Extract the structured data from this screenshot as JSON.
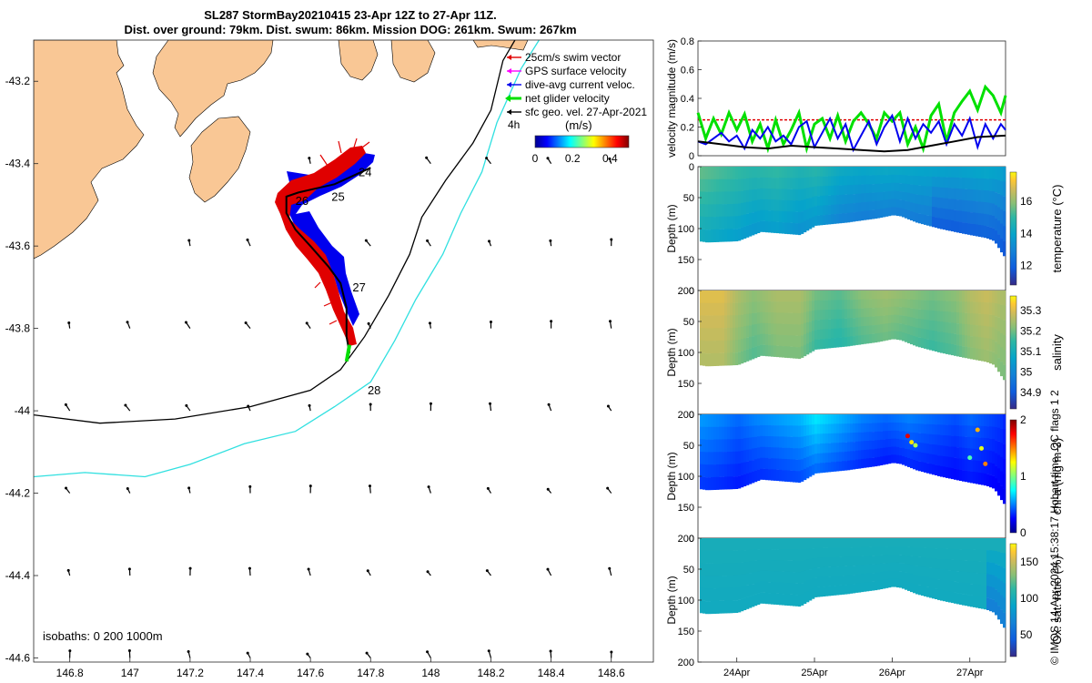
{
  "header": {
    "title_line1": "SL287 StormBay20210415 23-Apr 12Z to 27-Apr 11Z.",
    "title_line2": "Dist. over ground: 79km. Dist. swum: 86km. Mission DOG: 261km. Swum: 267km"
  },
  "footer": {
    "credit": "© IMOS 14-Apr-2024 15:38:17 Hobart time. QC flags 1  2"
  },
  "colors": {
    "land": "#f9c795",
    "swim_vector": "#e00000",
    "gps_velocity": "#ff00ff",
    "current_velocity": "#0000ee",
    "net_glider": "#00e000",
    "geo_velocity": "#000000",
    "isobath_200": "#000000",
    "isobath_1000": "#30e0e0"
  },
  "chart_data": [
    {
      "type": "map",
      "name": "trajectory-map",
      "xlim": [
        146.68,
        148.74
      ],
      "ylim": [
        -44.61,
        -43.1
      ],
      "x_ticks": [
        "146.8",
        "147",
        "147.2",
        "147.4",
        "147.6",
        "147.8",
        "148",
        "148.2",
        "148.4",
        "148.6"
      ],
      "x_tick_values": [
        146.8,
        147.0,
        147.2,
        147.4,
        147.6,
        147.8,
        148.0,
        148.2,
        148.4,
        148.6
      ],
      "y_ticks": [
        "-43.2",
        "-43.4",
        "-43.6",
        "-43.8",
        "-44",
        "-44.2",
        "-44.4",
        "-44.6"
      ],
      "y_tick_values": [
        -43.2,
        -43.4,
        -43.6,
        -43.8,
        -44.0,
        -44.2,
        -44.4,
        -44.6
      ],
      "legend": [
        "25cm/s swim vector",
        "GPS surface velocity",
        "dive-avg current veloc.",
        "net glider velocity",
        "sfc geo. vel. 27-Apr-2021"
      ],
      "legend_extra": "4h",
      "colorbar": {
        "label": "(m/s)",
        "ticks": [
          "0",
          "0.2",
          "0.4"
        ],
        "tick_values": [
          0,
          0.2,
          0.4
        ],
        "range": [
          0,
          0.5
        ]
      },
      "day_labels": [
        {
          "text": "24",
          "lon": 147.76,
          "lat": -43.43
        },
        {
          "text": "25",
          "lon": 147.67,
          "lat": -43.49
        },
        {
          "text": "26",
          "lon": 147.55,
          "lat": -43.5
        },
        {
          "text": "27",
          "lon": 147.74,
          "lat": -43.71
        },
        {
          "text": "28",
          "lon": 147.79,
          "lat": -43.96
        }
      ],
      "isobath_note": "isobaths: 0   200  1000m",
      "glider_track": [
        [
          147.8,
          -43.41
        ],
        [
          147.74,
          -43.43
        ],
        [
          147.68,
          -43.45
        ],
        [
          147.62,
          -43.46
        ],
        [
          147.56,
          -43.47
        ],
        [
          147.52,
          -43.48
        ],
        [
          147.52,
          -43.52
        ],
        [
          147.55,
          -43.56
        ],
        [
          147.6,
          -43.6
        ],
        [
          147.66,
          -43.65
        ],
        [
          147.7,
          -43.69
        ],
        [
          147.72,
          -43.75
        ],
        [
          147.72,
          -43.82
        ],
        [
          147.73,
          -43.86
        ]
      ],
      "net_glider_segment": [
        [
          147.73,
          -43.84
        ],
        [
          147.72,
          -43.88
        ]
      ],
      "isobath_200m": [
        [
          146.68,
          -44.01
        ],
        [
          146.9,
          -44.03
        ],
        [
          147.15,
          -44.02
        ],
        [
          147.4,
          -43.99
        ],
        [
          147.6,
          -43.95
        ],
        [
          147.7,
          -43.9
        ],
        [
          147.78,
          -43.82
        ],
        [
          147.86,
          -43.72
        ],
        [
          147.93,
          -43.62
        ],
        [
          147.97,
          -43.53
        ],
        [
          148.05,
          -43.44
        ],
        [
          148.14,
          -43.35
        ],
        [
          148.2,
          -43.27
        ],
        [
          148.24,
          -43.15
        ],
        [
          148.28,
          -43.1
        ]
      ],
      "isobath_1000m": [
        [
          146.68,
          -44.16
        ],
        [
          146.85,
          -44.15
        ],
        [
          147.05,
          -44.16
        ],
        [
          147.2,
          -44.13
        ],
        [
          147.38,
          -44.08
        ],
        [
          147.55,
          -44.05
        ],
        [
          147.68,
          -43.99
        ],
        [
          147.8,
          -43.93
        ],
        [
          147.88,
          -43.83
        ],
        [
          147.95,
          -43.73
        ],
        [
          148.04,
          -43.62
        ],
        [
          148.1,
          -43.52
        ],
        [
          148.17,
          -43.42
        ],
        [
          148.22,
          -43.3
        ],
        [
          148.3,
          -43.17
        ],
        [
          148.36,
          -43.1
        ]
      ]
    },
    {
      "type": "line",
      "name": "velocity-panel",
      "ylabel": "velocity magnitude (m/s)",
      "ylim": [
        0,
        0.8
      ],
      "y_ticks": [
        "0",
        "0.2",
        "0.4",
        "0.6",
        "0.8"
      ],
      "y_tick_values": [
        0,
        0.2,
        0.4,
        0.6,
        0.8
      ],
      "x_range_days": [
        23.5,
        27.46
      ],
      "series": [
        {
          "name": "25cm/s swim vector",
          "color": "#e00000",
          "style": "dashed",
          "x": [
            23.5,
            27.46
          ],
          "values": [
            0.25,
            0.25
          ]
        },
        {
          "name": "net glider velocity",
          "color": "#00e000",
          "x": [
            23.5,
            23.6,
            23.7,
            23.8,
            23.9,
            24.0,
            24.1,
            24.2,
            24.3,
            24.4,
            24.5,
            24.6,
            24.7,
            24.8,
            24.9,
            25.0,
            25.1,
            25.2,
            25.3,
            25.4,
            25.5,
            25.6,
            25.7,
            25.8,
            25.9,
            26.0,
            26.1,
            26.2,
            26.3,
            26.4,
            26.5,
            26.6,
            26.7,
            26.8,
            26.9,
            27.0,
            27.1,
            27.2,
            27.3,
            27.4,
            27.46
          ],
          "values": [
            0.3,
            0.12,
            0.26,
            0.15,
            0.3,
            0.18,
            0.29,
            0.1,
            0.22,
            0.05,
            0.25,
            0.08,
            0.18,
            0.3,
            0.05,
            0.22,
            0.26,
            0.12,
            0.28,
            0.1,
            0.24,
            0.3,
            0.22,
            0.12,
            0.3,
            0.24,
            0.3,
            0.08,
            0.2,
            0.05,
            0.28,
            0.36,
            0.1,
            0.3,
            0.38,
            0.45,
            0.32,
            0.48,
            0.42,
            0.3,
            0.42
          ]
        },
        {
          "name": "dive-avg current veloc.",
          "color": "#0000ee",
          "x": [
            23.5,
            23.6,
            23.7,
            23.8,
            23.9,
            24.0,
            24.1,
            24.2,
            24.3,
            24.4,
            24.5,
            24.6,
            24.7,
            24.8,
            24.9,
            25.0,
            25.1,
            25.2,
            25.3,
            25.4,
            25.5,
            25.6,
            25.7,
            25.8,
            25.9,
            26.0,
            26.1,
            26.2,
            26.3,
            26.4,
            26.5,
            26.6,
            26.7,
            26.8,
            26.9,
            27.0,
            27.1,
            27.2,
            27.3,
            27.4,
            27.46
          ],
          "values": [
            0.1,
            0.08,
            0.12,
            0.16,
            0.1,
            0.14,
            0.05,
            0.18,
            0.12,
            0.2,
            0.1,
            0.14,
            0.08,
            0.2,
            0.24,
            0.06,
            0.16,
            0.26,
            0.12,
            0.22,
            0.04,
            0.14,
            0.24,
            0.08,
            0.2,
            0.28,
            0.1,
            0.26,
            0.12,
            0.22,
            0.16,
            0.24,
            0.08,
            0.22,
            0.14,
            0.26,
            0.06,
            0.22,
            0.12,
            0.22,
            0.18
          ]
        },
        {
          "name": "sfc geo. vel.",
          "color": "#000000",
          "x": [
            23.5,
            23.8,
            24.1,
            24.4,
            24.7,
            25.0,
            25.3,
            25.6,
            25.9,
            26.2,
            26.5,
            26.8,
            27.1,
            27.46
          ],
          "values": [
            0.1,
            0.08,
            0.06,
            0.05,
            0.07,
            0.06,
            0.05,
            0.04,
            0.03,
            0.04,
            0.07,
            0.1,
            0.13,
            0.14
          ]
        }
      ]
    },
    {
      "type": "heatmap",
      "name": "temperature-panel",
      "ylabel": "Depth (m)",
      "colorbar_label": "temperature (°C)",
      "colormap": "parula",
      "ylim": [
        200,
        0
      ],
      "y_ticks": [
        "0",
        "50",
        "100",
        "150",
        "200"
      ],
      "y_tick_values": [
        0,
        50,
        100,
        150,
        200
      ],
      "cbar_range": [
        10.8,
        17.8
      ],
      "cbar_ticks": [
        "12",
        "14",
        "16"
      ],
      "cbar_tick_values": [
        12,
        14,
        16
      ],
      "x_days": [
        23.5,
        23.8,
        24.0,
        24.2,
        24.5,
        24.8,
        25.0,
        25.3,
        25.6,
        25.9,
        26.2,
        26.5,
        26.8,
        27.0,
        27.2,
        27.4,
        27.46
      ],
      "surface_values": [
        15.5,
        15.2,
        15.0,
        14.8,
        15.0,
        14.6,
        14.8,
        14.2,
        14.0,
        14.1,
        14.0,
        13.9,
        13.8,
        13.9,
        14.0,
        13.8,
        13.4
      ]
    },
    {
      "type": "heatmap",
      "name": "salinity-panel",
      "ylabel": "Depth (m)",
      "colorbar_label": "salinity",
      "colormap": "parula",
      "ylim": [
        200,
        0
      ],
      "y_ticks": [
        "0",
        "50",
        "100",
        "150",
        "200"
      ],
      "y_tick_values": [
        0,
        50,
        100,
        150,
        200
      ],
      "cbar_range": [
        34.82,
        35.37
      ],
      "cbar_ticks": [
        "34.9",
        "35",
        "35.1",
        "35.2",
        "35.3"
      ],
      "cbar_tick_values": [
        34.9,
        35.0,
        35.1,
        35.2,
        35.3
      ],
      "x_days": [
        23.5,
        23.8,
        24.0,
        24.2,
        24.5,
        24.8,
        25.0,
        25.3,
        25.6,
        25.9,
        26.2,
        26.5,
        26.8,
        27.0,
        27.2,
        27.4,
        27.46
      ],
      "surface_values": [
        35.3,
        35.3,
        35.25,
        35.22,
        35.25,
        35.25,
        35.2,
        35.18,
        35.22,
        35.24,
        35.22,
        35.2,
        35.22,
        35.26,
        35.28,
        35.25,
        35.25
      ]
    },
    {
      "type": "heatmap",
      "name": "chla-panel",
      "ylabel": "Depth (m)",
      "colorbar_label": "chl-a (mg m-3)",
      "colormap": "jet",
      "ylim": [
        200,
        0
      ],
      "y_ticks": [
        "0",
        "50",
        "100",
        "150",
        "200"
      ],
      "y_tick_values": [
        0,
        50,
        100,
        150,
        200
      ],
      "cbar_range": [
        0,
        2
      ],
      "cbar_ticks": [
        "0",
        "1",
        "2"
      ],
      "cbar_tick_values": [
        0,
        1,
        2
      ],
      "x_days": [
        23.5,
        23.8,
        24.0,
        24.2,
        24.5,
        24.8,
        25.0,
        25.3,
        25.6,
        25.9,
        26.2,
        26.5,
        26.8,
        27.0,
        27.2,
        27.4,
        27.46
      ],
      "surface_values": [
        0.55,
        0.5,
        0.45,
        0.5,
        0.55,
        0.6,
        0.7,
        0.6,
        0.5,
        0.45,
        0.5,
        0.45,
        0.4,
        0.45,
        0.4,
        0.35,
        0.3
      ]
    },
    {
      "type": "heatmap",
      "name": "oxygen-panel",
      "ylabel": "Depth (m)",
      "colorbar_label": "Ox. sat. ratio (%)",
      "colormap": "parula",
      "ylim": [
        200,
        0
      ],
      "y_ticks": [
        "0",
        "50",
        "100",
        "150",
        "200"
      ],
      "y_tick_values": [
        0,
        50,
        100,
        150,
        200
      ],
      "cbar_range": [
        20,
        175
      ],
      "cbar_ticks": [
        "50",
        "100",
        "150"
      ],
      "cbar_tick_values": [
        50,
        100,
        150
      ],
      "x_days": [
        23.5,
        23.8,
        24.0,
        24.2,
        24.5,
        24.8,
        25.0,
        25.3,
        25.6,
        25.9,
        26.2,
        26.5,
        26.8,
        27.0,
        27.2,
        27.4,
        27.46
      ],
      "surface_values": [
        100,
        100,
        100,
        100,
        100,
        100,
        100,
        100,
        100,
        100,
        100,
        100,
        100,
        100,
        100,
        100,
        100
      ]
    }
  ],
  "section_axes": {
    "x_ticks": [
      "24Apr",
      "25Apr",
      "26Apr",
      "27Apr"
    ],
    "x_tick_values": [
      24.0,
      25.0,
      26.0,
      27.0
    ],
    "profile_bottom_days": [
      23.5,
      23.6,
      24.0,
      24.3,
      24.8,
      25.0,
      25.4,
      25.8,
      26.0,
      26.1,
      26.3,
      26.6,
      26.9,
      27.2,
      27.3,
      27.4,
      27.46
    ],
    "profile_bottom_depths": [
      120,
      122,
      120,
      105,
      110,
      95,
      90,
      83,
      78,
      80,
      90,
      100,
      108,
      115,
      120,
      140,
      150
    ]
  }
}
